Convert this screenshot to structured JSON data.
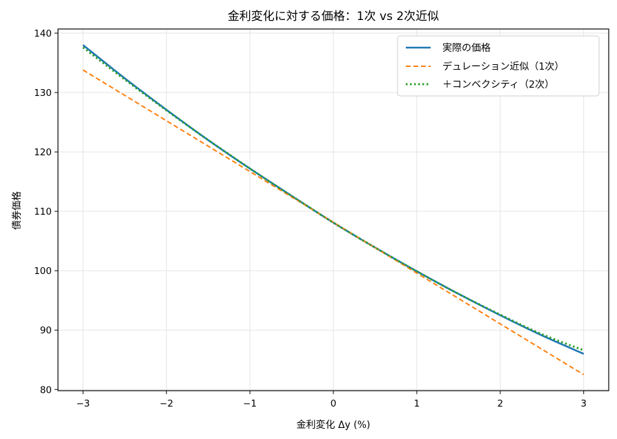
{
  "chart_data": {
    "type": "line",
    "title": "金利変化に対する価格：1次 vs 2次近似",
    "xlabel": "金利変化 Δy (%)",
    "ylabel": "債券価格",
    "xlim": [
      -3.3,
      3.3
    ],
    "ylim": [
      79.8,
      140.7
    ],
    "x_ticks": [
      -3,
      -2,
      -1,
      0,
      1,
      2,
      3
    ],
    "x_tick_labels": [
      "−3",
      "−2",
      "−1",
      "0",
      "1",
      "2",
      "3"
    ],
    "y_ticks": [
      80,
      90,
      100,
      110,
      120,
      130,
      140
    ],
    "y_tick_labels": [
      "80",
      "90",
      "100",
      "110",
      "120",
      "130",
      "140"
    ],
    "grid": true,
    "legend_position": "top-right",
    "series": [
      {
        "name": "実際の価格",
        "color": "#1f77b4",
        "style": "solid",
        "x": [
          -3,
          -2.5,
          -2,
          -1.5,
          -1,
          -0.5,
          0,
          0.5,
          1,
          1.5,
          2,
          2.5,
          3
        ],
        "values": [
          138.0,
          132.4,
          127.1,
          122.0,
          117.2,
          112.6,
          108.1,
          103.9,
          99.9,
          96.1,
          92.5,
          89.1,
          86.0
        ]
      },
      {
        "name": "デュレーション近似（1次）",
        "color": "#ff7f0e",
        "style": "dashed",
        "x": [
          -3,
          3
        ],
        "values": [
          133.8,
          82.5
        ]
      },
      {
        "name": "＋コンベクシティ（2次）",
        "color": "#2ca02c",
        "style": "dotted",
        "x": [
          -3,
          -2.5,
          -2,
          -1.5,
          -1,
          -0.5,
          0,
          0.5,
          1,
          1.5,
          2,
          2.5,
          3
        ],
        "values": [
          137.6,
          132.2,
          127.0,
          122.0,
          117.2,
          112.6,
          108.1,
          103.9,
          99.9,
          96.1,
          92.6,
          89.3,
          86.6
        ]
      }
    ]
  }
}
